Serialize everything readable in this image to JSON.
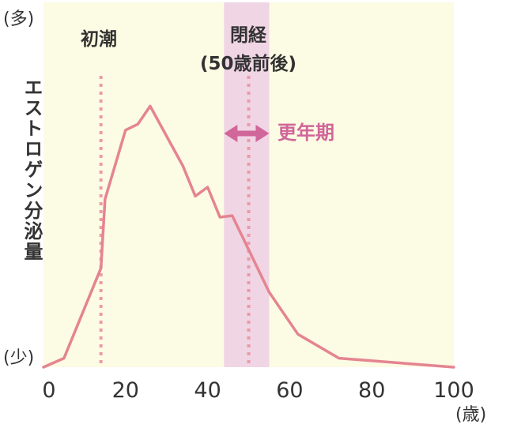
{
  "colors": {
    "plot_background": "#fcfbe3",
    "menopause_band": "#f0d5e4",
    "curve": "#e58491",
    "marker_line": "#eb9bab",
    "menopause_arrow": "#d0669a",
    "text": "#333333"
  },
  "chart_data": {
    "type": "line",
    "title": "",
    "ylabel": "エストロゲン分泌量",
    "y_top_label": "(多)",
    "y_bottom_label": "(少)",
    "x_unit_label": "(歳)",
    "xlim": [
      0,
      100
    ],
    "ylim": [
      0,
      100
    ],
    "x_ticks": [
      "0",
      "20",
      "40",
      "60",
      "80",
      "100"
    ],
    "grid": false,
    "series": [
      {
        "x": [
          0,
          5,
          14,
          15,
          20,
          23,
          26,
          34,
          37,
          40,
          43,
          46,
          55,
          62,
          72,
          100
        ],
        "y": [
          0,
          3,
          33,
          56,
          79,
          81,
          87,
          67,
          57,
          60,
          50,
          50.5,
          25,
          11,
          3,
          0
        ]
      }
    ],
    "annotations": {
      "menarche": {
        "label": "初潮",
        "x": 14
      },
      "menopause": {
        "label_line1": "閉経",
        "label_line2": "(50歳前後)",
        "x": 50
      },
      "menopausal_period": {
        "label": "更年期",
        "x_range": [
          44,
          55
        ]
      }
    }
  }
}
